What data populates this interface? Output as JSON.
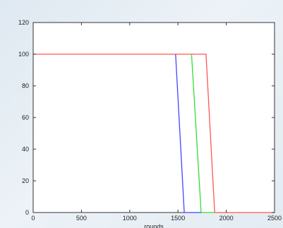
{
  "chart_data": {
    "type": "line",
    "title": "",
    "xlabel": "rounds",
    "ylabel": "",
    "xlim": [
      0,
      2500
    ],
    "ylim": [
      0,
      120
    ],
    "x_ticks": [
      0,
      500,
      1000,
      1500,
      2000,
      2500
    ],
    "y_ticks": [
      0,
      20,
      40,
      60,
      80,
      100,
      120
    ],
    "grid": false,
    "legend": "none",
    "series": [
      {
        "color": "#ff5555",
        "points": [
          [
            0,
            100
          ],
          [
            1790,
            100
          ],
          [
            1880,
            0
          ],
          [
            2500,
            0
          ]
        ]
      },
      {
        "color": "#33dd33",
        "points": [
          [
            1640,
            100
          ],
          [
            1740,
            0
          ],
          [
            1880,
            0
          ]
        ]
      },
      {
        "color": "#4444ff",
        "points": [
          [
            1475,
            100
          ],
          [
            1565,
            0
          ],
          [
            1740,
            0
          ]
        ]
      }
    ]
  }
}
